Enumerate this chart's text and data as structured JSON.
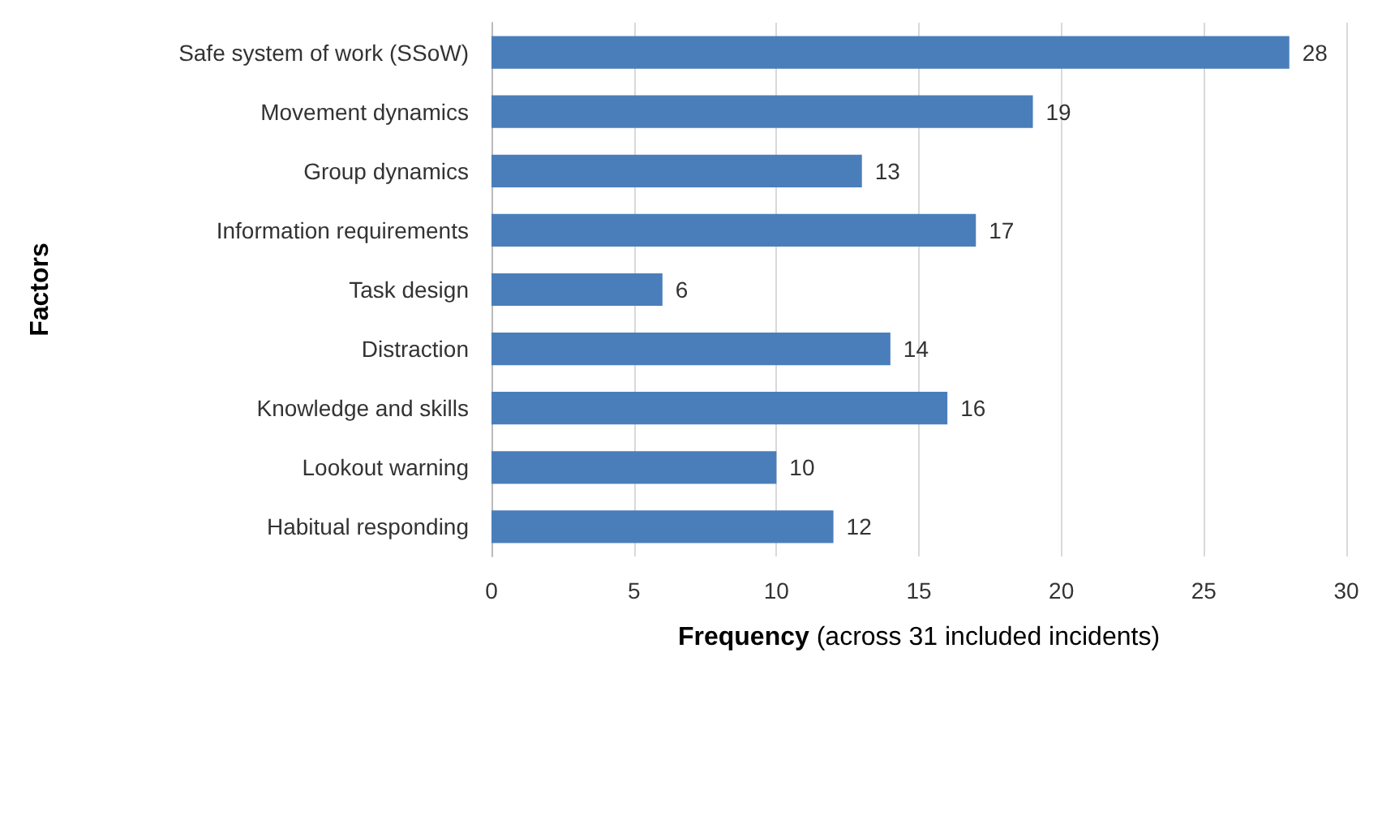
{
  "chart_data": {
    "type": "bar",
    "orientation": "horizontal",
    "xlabel": "Frequency (across 31 included incidents)",
    "ylabel": "Factors",
    "categories": [
      "Safe system of work (SSoW)",
      "Movement dynamics",
      "Group dynamics",
      "Information requirements",
      "Task design",
      "Distraction",
      "Knowledge and skills",
      "Lookout warning",
      "Habitual responding"
    ],
    "values": [
      28,
      19,
      13,
      17,
      6,
      14,
      16,
      10,
      12
    ],
    "color": "#4a7ebb",
    "xlim": [
      0,
      30
    ],
    "xticks": [
      0,
      5,
      10,
      15,
      20,
      25,
      30
    ],
    "grid": "x",
    "data_labels": true
  }
}
